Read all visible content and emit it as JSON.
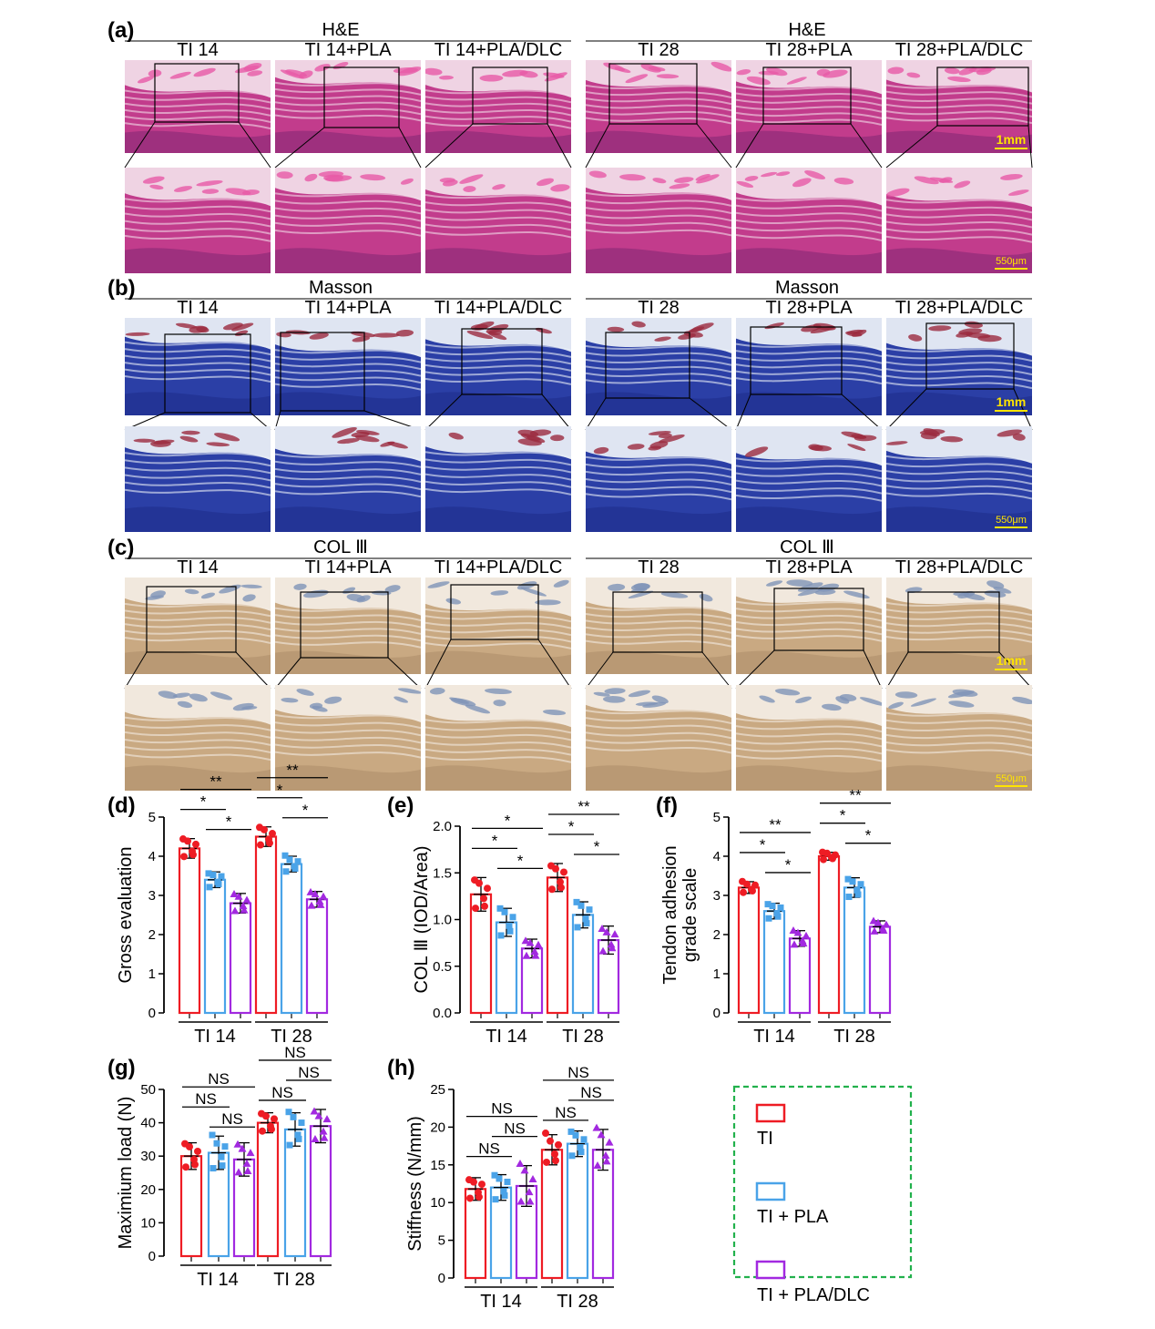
{
  "colors": {
    "ti": "#ee1c24",
    "pla": "#4aa3e8",
    "dlc": "#a229e0",
    "legend_border": "#22b14c",
    "scalebar": "#ffe400"
  },
  "histology": {
    "panels": [
      {
        "letter": "(a)",
        "stain": "H&E",
        "scalebar_top": "1mm",
        "scalebar_bottom": "550μm",
        "palette": {
          "bg": "#c23c8c",
          "band": "#f1dbe8",
          "dark": "#7a2470",
          "accent": "#e75aa6"
        }
      },
      {
        "letter": "(b)",
        "stain": "Masson",
        "scalebar_top": "1mm",
        "scalebar_bottom": "550μm",
        "palette": {
          "bg": "#2b3fa6",
          "band": "#e9eef6",
          "dark": "#1b2a86",
          "accent": "#9b2b3e"
        }
      },
      {
        "letter": "(c)",
        "stain": "COL Ⅲ",
        "scalebar_top": "1mm",
        "scalebar_bottom": "550μm",
        "palette": {
          "bg": "#c9a982",
          "band": "#f3ebe1",
          "dark": "#a98a65",
          "accent": "#7f93b8"
        }
      }
    ],
    "columns": [
      "TI 14",
      "TI 14+PLA",
      "TI 14+PLA/DLC",
      "TI 28",
      "TI 28+PLA",
      "TI 28+PLA/DLC"
    ]
  },
  "chart_data": [
    {
      "panel": "(d)",
      "type": "bar",
      "ylabel": "Gross evaluation",
      "ylim": [
        0,
        5
      ],
      "yticks": [
        "0",
        "1",
        "2",
        "3",
        "4",
        "5"
      ],
      "groups": [
        "TI 14",
        "TI 28"
      ],
      "series": [
        {
          "name": "TI",
          "values": [
            4.2,
            4.5
          ],
          "sd": [
            0.25,
            0.25
          ]
        },
        {
          "name": "TI + PLA",
          "values": [
            3.4,
            3.8
          ],
          "sd": [
            0.2,
            0.2
          ]
        },
        {
          "name": "TI + PLA/DLC",
          "values": [
            2.8,
            2.9
          ],
          "sd": [
            0.25,
            0.2
          ]
        }
      ],
      "sig": [
        {
          "label": "**",
          "from": [
            0,
            0
          ],
          "to": [
            0,
            2
          ],
          "level": 3
        },
        {
          "label": "*",
          "from": [
            0,
            0
          ],
          "to": [
            0,
            1
          ],
          "level": 2
        },
        {
          "label": "*",
          "from": [
            0,
            1
          ],
          "to": [
            0,
            2
          ],
          "level": 1
        },
        {
          "label": "**",
          "from": [
            1,
            0
          ],
          "to": [
            1,
            2
          ],
          "level": 3
        },
        {
          "label": "*",
          "from": [
            1,
            0
          ],
          "to": [
            1,
            1
          ],
          "level": 2
        },
        {
          "label": "*",
          "from": [
            1,
            1
          ],
          "to": [
            1,
            2
          ],
          "level": 1
        }
      ]
    },
    {
      "panel": "(e)",
      "type": "bar",
      "ylabel": "COL Ⅲ (IOD/Area)",
      "ylim": [
        0,
        2.0
      ],
      "yticks": [
        "0.0",
        "0.5",
        "1.0",
        "1.5",
        "2.0"
      ],
      "groups": [
        "TI 14",
        "TI 28"
      ],
      "series": [
        {
          "name": "TI",
          "values": [
            1.27,
            1.45
          ],
          "sd": [
            0.18,
            0.15
          ]
        },
        {
          "name": "TI + PLA",
          "values": [
            0.97,
            1.05
          ],
          "sd": [
            0.15,
            0.14
          ]
        },
        {
          "name": "TI + PLA/DLC",
          "values": [
            0.69,
            0.78
          ],
          "sd": [
            0.1,
            0.15
          ]
        }
      ],
      "sig": [
        {
          "label": "*",
          "from": [
            0,
            0
          ],
          "to": [
            0,
            2
          ],
          "level": 3
        },
        {
          "label": "*",
          "from": [
            0,
            0
          ],
          "to": [
            0,
            1
          ],
          "level": 2
        },
        {
          "label": "*",
          "from": [
            0,
            1
          ],
          "to": [
            0,
            2
          ],
          "level": 1
        },
        {
          "label": "**",
          "from": [
            1,
            0
          ],
          "to": [
            1,
            2
          ],
          "level": 3
        },
        {
          "label": "*",
          "from": [
            1,
            0
          ],
          "to": [
            1,
            1
          ],
          "level": 2
        },
        {
          "label": "*",
          "from": [
            1,
            1
          ],
          "to": [
            1,
            2
          ],
          "level": 1
        }
      ]
    },
    {
      "panel": "(f)",
      "type": "bar",
      "ylabel": "Tendon adhesion\ngrade scale",
      "ylim": [
        0,
        5
      ],
      "yticks": [
        "0",
        "1",
        "2",
        "3",
        "4",
        "5"
      ],
      "groups": [
        "TI 14",
        "TI 28"
      ],
      "series": [
        {
          "name": "TI",
          "values": [
            3.2,
            4.0
          ],
          "sd": [
            0.15,
            0.1
          ]
        },
        {
          "name": "TI + PLA",
          "values": [
            2.6,
            3.2
          ],
          "sd": [
            0.2,
            0.25
          ]
        },
        {
          "name": "TI + PLA/DLC",
          "values": [
            1.9,
            2.2
          ],
          "sd": [
            0.2,
            0.15
          ]
        }
      ],
      "sig": [
        {
          "label": "**",
          "from": [
            0,
            0
          ],
          "to": [
            0,
            2
          ],
          "level": 3
        },
        {
          "label": "*",
          "from": [
            0,
            0
          ],
          "to": [
            0,
            1
          ],
          "level": 2
        },
        {
          "label": "*",
          "from": [
            0,
            1
          ],
          "to": [
            0,
            2
          ],
          "level": 1
        },
        {
          "label": "**",
          "from": [
            1,
            0
          ],
          "to": [
            1,
            2
          ],
          "level": 3
        },
        {
          "label": "*",
          "from": [
            1,
            0
          ],
          "to": [
            1,
            1
          ],
          "level": 2
        },
        {
          "label": "*",
          "from": [
            1,
            1
          ],
          "to": [
            1,
            2
          ],
          "level": 1
        }
      ]
    },
    {
      "panel": "(g)",
      "type": "bar",
      "ylabel": "Maximium load (N)",
      "ylim": [
        0,
        50
      ],
      "yticks": [
        "0",
        "10",
        "20",
        "30",
        "40",
        "50"
      ],
      "groups": [
        "TI 14",
        "TI 28"
      ],
      "series": [
        {
          "name": "TI",
          "values": [
            30,
            40
          ],
          "sd": [
            4,
            3
          ]
        },
        {
          "name": "TI + PLA",
          "values": [
            31,
            38
          ],
          "sd": [
            5,
            5
          ]
        },
        {
          "name": "TI + PLA/DLC",
          "values": [
            29,
            39
          ],
          "sd": [
            5,
            5
          ]
        }
      ],
      "sig": [
        {
          "label": "NS",
          "from": [
            0,
            0
          ],
          "to": [
            0,
            2
          ],
          "level": 3
        },
        {
          "label": "NS",
          "from": [
            0,
            0
          ],
          "to": [
            0,
            1
          ],
          "level": 2
        },
        {
          "label": "NS",
          "from": [
            0,
            1
          ],
          "to": [
            0,
            2
          ],
          "level": 1
        },
        {
          "label": "NS",
          "from": [
            1,
            0
          ],
          "to": [
            1,
            2
          ],
          "level": 3
        },
        {
          "label": "NS",
          "from": [
            1,
            0
          ],
          "to": [
            1,
            1
          ],
          "level": 1
        },
        {
          "label": "NS",
          "from": [
            1,
            1
          ],
          "to": [
            1,
            2
          ],
          "level": 2
        }
      ]
    },
    {
      "panel": "(h)",
      "type": "bar",
      "ylabel": "Stiffness (N/mm)",
      "ylim": [
        0,
        25
      ],
      "yticks": [
        "0",
        "5",
        "10",
        "15",
        "20",
        "25"
      ],
      "groups": [
        "TI 14",
        "TI 28"
      ],
      "series": [
        {
          "name": "TI",
          "values": [
            11.8,
            17.0
          ],
          "sd": [
            1.5,
            2.0
          ]
        },
        {
          "name": "TI + PLA",
          "values": [
            12.0,
            17.8
          ],
          "sd": [
            1.7,
            1.7
          ]
        },
        {
          "name": "TI + PLA/DLC",
          "values": [
            12.2,
            17.0
          ],
          "sd": [
            2.7,
            2.7
          ]
        }
      ],
      "sig": [
        {
          "label": "NS",
          "from": [
            0,
            0
          ],
          "to": [
            0,
            2
          ],
          "level": 3
        },
        {
          "label": "NS",
          "from": [
            0,
            0
          ],
          "to": [
            0,
            1
          ],
          "level": 1
        },
        {
          "label": "NS",
          "from": [
            0,
            1
          ],
          "to": [
            0,
            2
          ],
          "level": 2
        },
        {
          "label": "NS",
          "from": [
            1,
            0
          ],
          "to": [
            1,
            2
          ],
          "level": 3
        },
        {
          "label": "NS",
          "from": [
            1,
            0
          ],
          "to": [
            1,
            1
          ],
          "level": 1
        },
        {
          "label": "NS",
          "from": [
            1,
            1
          ],
          "to": [
            1,
            2
          ],
          "level": 2
        }
      ]
    }
  ],
  "legend": {
    "items": [
      "TI",
      "TI + PLA",
      "TI + PLA/DLC"
    ]
  }
}
